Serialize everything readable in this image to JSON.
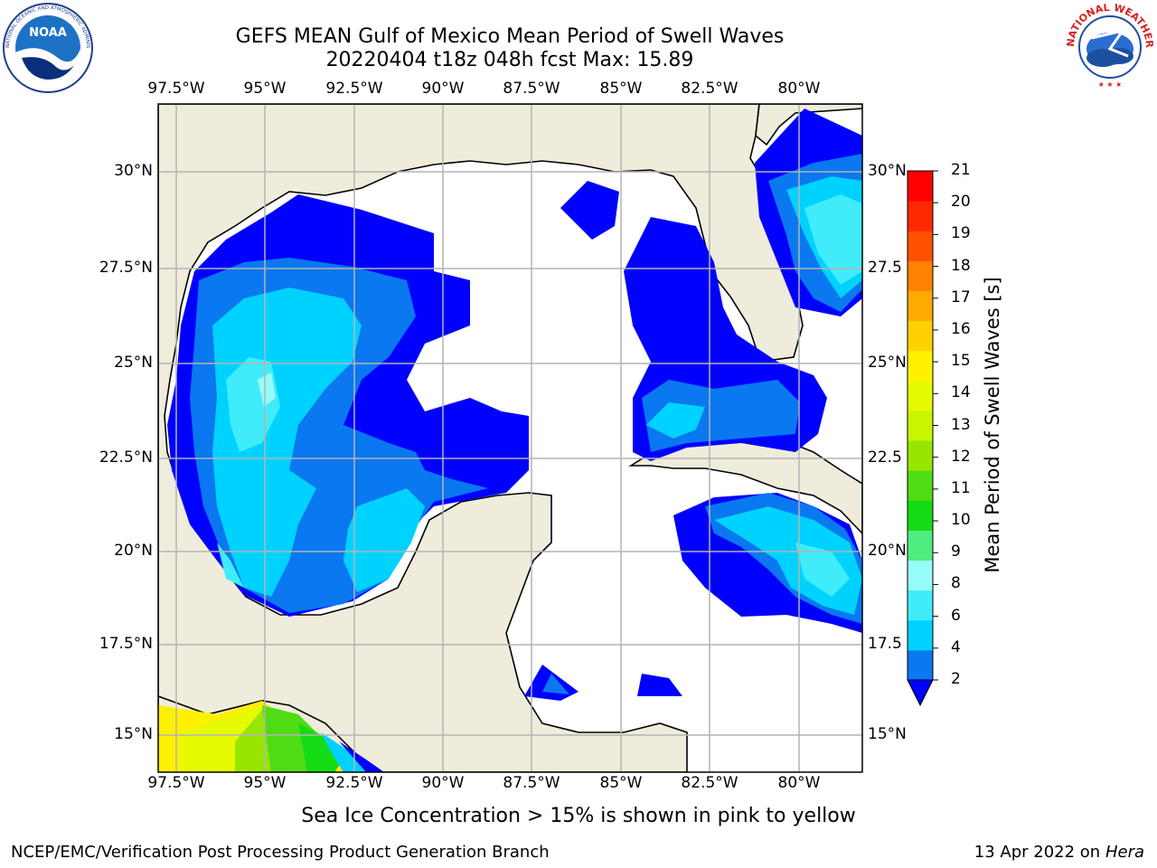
{
  "header": {
    "title": "GEFS MEAN Gulf of Mexico Mean Period of Swell Waves",
    "subtitle": "20220404 t18z 048h fcst   Max: 15.89"
  },
  "logos": {
    "left_text": "NOAA",
    "left_ring_text": "NATIONAL OCEANIC AND ATMOSPHERIC ADMINISTRATION · U.S. DEPARTMENT OF COMMERCE",
    "right_ring_text": "NATIONAL WEATHER SERVICE"
  },
  "map": {
    "lon_labels": [
      "97.5°W",
      "95°W",
      "92.5°W",
      "90°W",
      "87.5°W",
      "85°W",
      "82.5°W",
      "80°W"
    ],
    "lat_labels_left": [
      "30°N",
      "27.5°N",
      "25°N",
      "22.5°N",
      "20°N",
      "17.5°N",
      "15°N"
    ],
    "lat_labels_right": [
      "30°N",
      "27.5",
      "25°N",
      "22.5",
      "20°N",
      "17.5",
      "15°N"
    ],
    "land_color": "#efecdc",
    "grid": true
  },
  "colorbar": {
    "label": "Mean Period of Swell Waves [s]",
    "ticks": [
      "2",
      "4",
      "6",
      "8",
      "9",
      "10",
      "11",
      "12",
      "13",
      "14",
      "15",
      "16",
      "17",
      "18",
      "19",
      "20",
      "21"
    ],
    "colors": [
      "#0a78f0",
      "#00d2ff",
      "#40ecfa",
      "#96fcfa",
      "#50ec80",
      "#14dc14",
      "#50dc14",
      "#96e600",
      "#c8f500",
      "#e6fa00",
      "#fff000",
      "#ffd200",
      "#ffaa00",
      "#ff8200",
      "#ff5000",
      "#ff2800",
      "#ff0000"
    ],
    "under_color": "#0000ff"
  },
  "footer": {
    "note": "Sea Ice Concentration > 15% is shown in pink to yellow",
    "credit": "NCEP/EMC/Verification Post Processing Product Generation Branch",
    "date": "13 Apr 2022 on ",
    "host": "Hera"
  }
}
